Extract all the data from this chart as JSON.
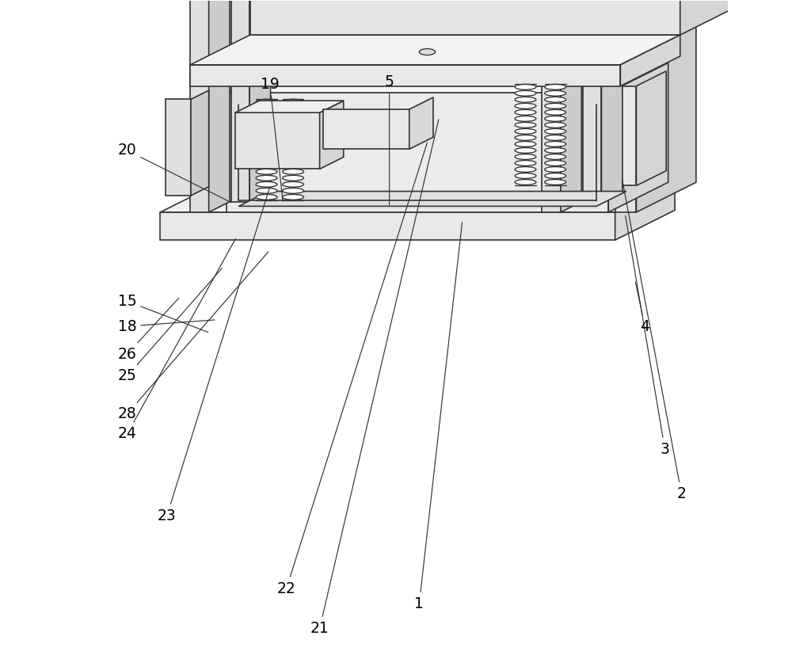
{
  "bg_color": "#ffffff",
  "line_color": "#333333",
  "line_width": 1.2,
  "labels_data": [
    [
      "21",
      [
        0.385,
        0.055
      ],
      [
        0.565,
        0.825
      ]
    ],
    [
      "22",
      [
        0.335,
        0.115
      ],
      [
        0.548,
        0.79
      ]
    ],
    [
      "23",
      [
        0.155,
        0.225
      ],
      [
        0.31,
        0.72
      ]
    ],
    [
      "24",
      [
        0.095,
        0.348
      ],
      [
        0.26,
        0.645
      ]
    ],
    [
      "28",
      [
        0.095,
        0.378
      ],
      [
        0.31,
        0.625
      ]
    ],
    [
      "25",
      [
        0.095,
        0.435
      ],
      [
        0.24,
        0.6
      ]
    ],
    [
      "26",
      [
        0.095,
        0.468
      ],
      [
        0.175,
        0.555
      ]
    ],
    [
      "18",
      [
        0.095,
        0.51
      ],
      [
        0.23,
        0.52
      ]
    ],
    [
      "15",
      [
        0.095,
        0.548
      ],
      [
        0.22,
        0.5
      ]
    ],
    [
      "20",
      [
        0.095,
        0.775
      ],
      [
        0.255,
        0.695
      ]
    ],
    [
      "19",
      [
        0.31,
        0.875
      ],
      [
        0.33,
        0.695
      ]
    ],
    [
      "5",
      [
        0.49,
        0.878
      ],
      [
        0.49,
        0.69
      ]
    ],
    [
      "2",
      [
        0.93,
        0.258
      ],
      [
        0.84,
        0.735
      ]
    ],
    [
      "3",
      [
        0.905,
        0.325
      ],
      [
        0.845,
        0.68
      ]
    ],
    [
      "4",
      [
        0.875,
        0.51
      ],
      [
        0.86,
        0.58
      ]
    ],
    [
      "1",
      [
        0.535,
        0.092
      ],
      [
        0.6,
        0.67
      ]
    ]
  ]
}
